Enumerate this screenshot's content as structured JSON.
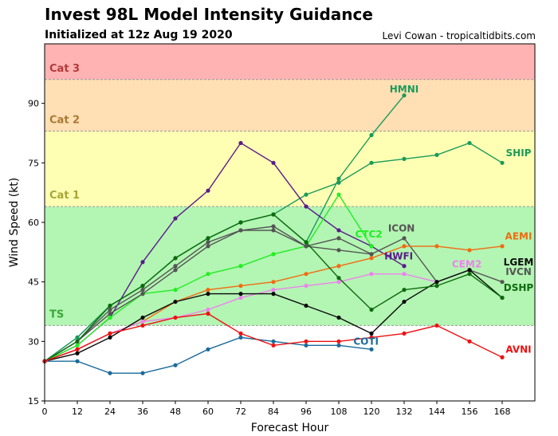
{
  "header": {
    "title": "Invest 98L Model Intensity Guidance",
    "subtitle": "Initialized at 12z Aug 19 2020",
    "credit": "Levi Cowan - tropicaltidbits.com"
  },
  "chart_data": {
    "type": "line",
    "title": "Invest 98L Model Intensity Guidance",
    "subtitle": "Initialized at 12z Aug 19 2020",
    "xlabel": "Forecast Hour",
    "ylabel": "Wind Speed (kt)",
    "xlim": [
      0,
      180
    ],
    "ylim": [
      15,
      105
    ],
    "xticks": [
      0,
      12,
      24,
      36,
      48,
      60,
      72,
      84,
      96,
      108,
      120,
      132,
      144,
      156,
      168
    ],
    "yticks": [
      15,
      30,
      45,
      60,
      75,
      90
    ],
    "grid": false,
    "bands": [
      {
        "label": "TS",
        "from": 34,
        "to": 64,
        "color": "#b3f5b3",
        "label_color": "#3aa83a"
      },
      {
        "label": "Cat 1",
        "from": 64,
        "to": 83,
        "color": "#ffffb3",
        "label_color": "#a6a638"
      },
      {
        "label": "Cat 2",
        "from": 83,
        "to": 96,
        "color": "#ffdfb3",
        "label_color": "#a87a36"
      },
      {
        "label": "Cat 3",
        "from": 96,
        "to": 105,
        "color": "#ffb3b3",
        "label_color": "#b33a3a"
      }
    ],
    "series": [
      {
        "name": "HMNI",
        "color": "#1a9b5a",
        "x": [
          0,
          12,
          24,
          36,
          48,
          60,
          72,
          84,
          96,
          108,
          120,
          132
        ],
        "y": [
          25,
          31,
          39,
          44,
          51,
          56,
          60,
          62,
          55,
          71,
          82,
          92
        ]
      },
      {
        "name": "SHIP",
        "color": "#1a9b5a",
        "x": [
          0,
          12,
          24,
          36,
          48,
          60,
          72,
          84,
          96,
          108,
          120,
          132,
          144,
          156,
          168
        ],
        "y": [
          25,
          31,
          39,
          44,
          51,
          56,
          60,
          62,
          67,
          70,
          75,
          76,
          77,
          80,
          75
        ]
      },
      {
        "name": "HWFI",
        "color": "#5a1a8a",
        "x": [
          0,
          12,
          24,
          36,
          48,
          60,
          72,
          84,
          96,
          108,
          120,
          132
        ],
        "y": [
          25,
          29,
          36,
          50,
          61,
          68,
          80,
          75,
          64,
          58,
          54,
          49
        ]
      },
      {
        "name": "CTC2",
        "color": "#22ee22",
        "x": [
          0,
          12,
          24,
          36,
          48,
          60,
          72,
          84,
          96,
          108,
          120
        ],
        "y": [
          25,
          29,
          36,
          42,
          43,
          47,
          49,
          52,
          54,
          67,
          54
        ]
      },
      {
        "name": "ICON",
        "color": "#555555",
        "x": [
          0,
          12,
          24,
          36,
          48,
          60,
          72,
          84,
          96,
          108,
          120,
          132,
          144,
          156,
          168
        ],
        "y": [
          25,
          30,
          38,
          43,
          49,
          55,
          58,
          58,
          54,
          53,
          52,
          56,
          45,
          48,
          45
        ]
      },
      {
        "name": "IVCN",
        "color": "#555555",
        "x": [
          0,
          12,
          24,
          36,
          48,
          60,
          72,
          84,
          96,
          108,
          120
        ],
        "y": [
          25,
          30,
          37,
          42,
          48,
          54,
          58,
          59,
          54,
          56,
          52
        ]
      },
      {
        "name": "AEMI",
        "color": "#f26b0f",
        "x": [
          0,
          12,
          24,
          36,
          48,
          60,
          72,
          84,
          96,
          108,
          120,
          132,
          144,
          156,
          168
        ],
        "y": [
          25,
          28,
          32,
          35,
          40,
          43,
          44,
          45,
          47,
          49,
          51,
          54,
          54,
          53,
          54
        ]
      },
      {
        "name": "CEM2",
        "color": "#ee82ee",
        "x": [
          0,
          12,
          24,
          36,
          48,
          60,
          72,
          84,
          96,
          108,
          120,
          132,
          144
        ],
        "y": [
          25,
          28,
          32,
          35,
          36,
          38,
          41,
          43,
          44,
          45,
          47,
          47,
          45
        ]
      },
      {
        "name": "LGEM",
        "color": "#0a0a0a",
        "x": [
          0,
          12,
          24,
          36,
          48,
          60,
          72,
          84,
          96,
          108,
          120,
          132,
          144,
          156,
          168
        ],
        "y": [
          25,
          27,
          31,
          36,
          40,
          42,
          42,
          42,
          39,
          36,
          32,
          40,
          45,
          48,
          41
        ]
      },
      {
        "name": "DSHP",
        "color": "#0e6b0e",
        "x": [
          0,
          12,
          24,
          36,
          48,
          60,
          72,
          84,
          96,
          108,
          120,
          132,
          144,
          156,
          168
        ],
        "y": [
          25,
          30,
          39,
          44,
          51,
          56,
          60,
          62,
          55,
          46,
          38,
          43,
          44,
          47,
          41
        ]
      },
      {
        "name": "COTI",
        "color": "#1a6b9b",
        "x": [
          0,
          12,
          24,
          36,
          48,
          60,
          72,
          84,
          96,
          108,
          120
        ],
        "y": [
          25,
          25,
          22,
          22,
          24,
          28,
          31,
          30,
          29,
          29,
          28
        ]
      },
      {
        "name": "AVNI",
        "color": "#ee1111",
        "x": [
          0,
          12,
          24,
          36,
          48,
          60,
          72,
          84,
          96,
          108,
          120,
          132,
          144,
          156,
          168
        ],
        "y": [
          25,
          28,
          32,
          34,
          36,
          37,
          32,
          29,
          30,
          30,
          31,
          32,
          34,
          30,
          26
        ]
      }
    ],
    "labels": [
      {
        "text": "HMNI",
        "x": 132,
        "y": 93.5,
        "color": "#1a9b5a"
      },
      {
        "text": "SHIP",
        "x": 174,
        "y": 77.5,
        "color": "#1a9b5a"
      },
      {
        "text": "ICON",
        "x": 131,
        "y": 58.5,
        "color": "#555555"
      },
      {
        "text": "AEMI",
        "x": 174,
        "y": 56.5,
        "color": "#f26b0f"
      },
      {
        "text": "CTC2",
        "x": 119,
        "y": 57,
        "color": "#22ee22"
      },
      {
        "text": "HWFI",
        "x": 130,
        "y": 51.5,
        "color": "#5a1a8a"
      },
      {
        "text": "CEM2",
        "x": 155,
        "y": 49.5,
        "color": "#ee82ee"
      },
      {
        "text": "LGEM",
        "x": 174,
        "y": 50,
        "color": "#0a0a0a"
      },
      {
        "text": "IVCN",
        "x": 174,
        "y": 47.5,
        "color": "#555555"
      },
      {
        "text": "DSHP",
        "x": 174,
        "y": 43.5,
        "color": "#0e6b0e"
      },
      {
        "text": "COTI",
        "x": 118,
        "y": 30,
        "color": "#1a6b9b"
      },
      {
        "text": "AVNI",
        "x": 174,
        "y": 28,
        "color": "#ee1111"
      }
    ]
  }
}
